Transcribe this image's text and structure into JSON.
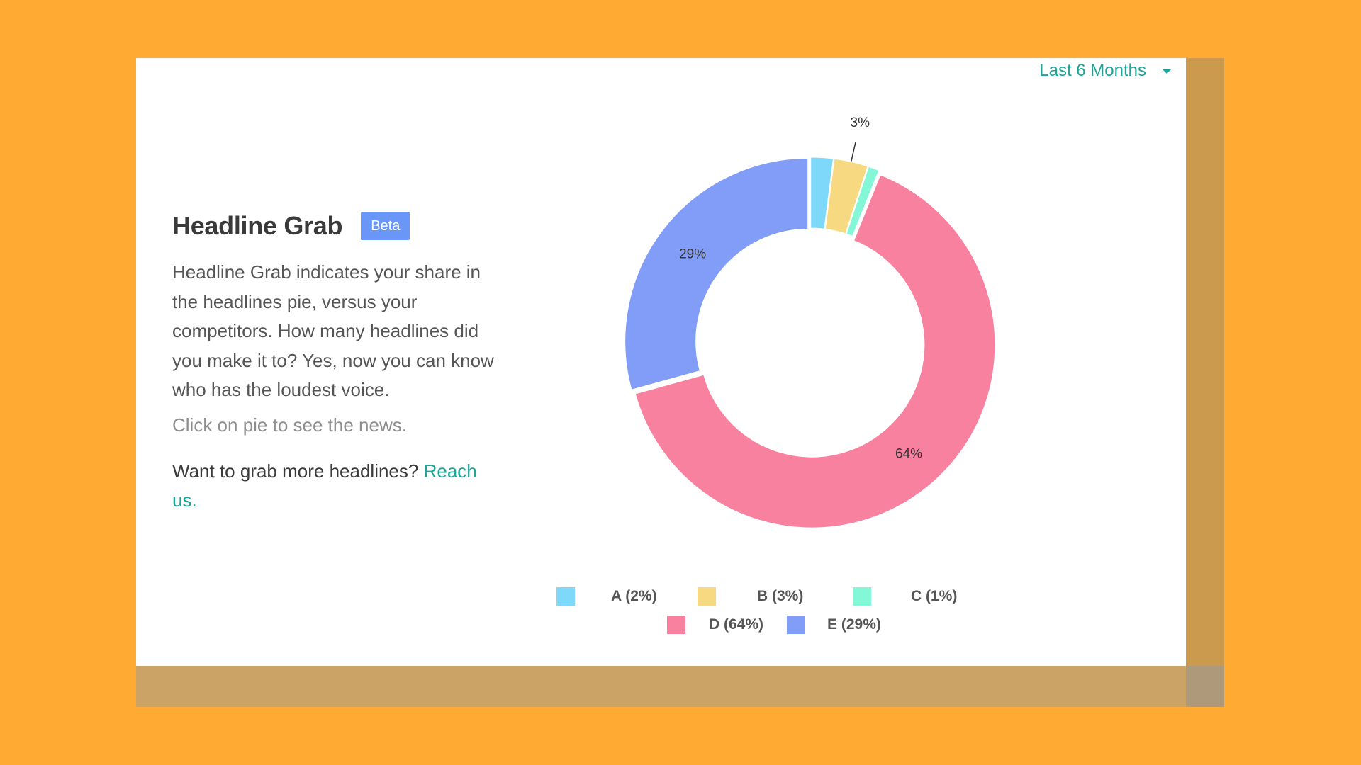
{
  "header": {
    "period_selector": {
      "label": "Last 6 Months",
      "icon": "caret-down-icon"
    }
  },
  "info": {
    "title": "Headline Grab",
    "badge": "Beta",
    "description": "Headline Grab indicates your share in the headlines pie, versus your competitors. How many headlines did you make it to? Yes, now you can know who has the loudest voice.",
    "hint": "Click on pie to see the news.",
    "cta_text": "Want to grab more headlines?",
    "cta_link": "Reach us."
  },
  "colors": {
    "background": "#FFAB33",
    "accent": "#1BA697",
    "badge": "#6A96F7"
  },
  "chart_data": {
    "type": "pie",
    "variant": "donut",
    "series": [
      {
        "name": "A",
        "value": 2,
        "legend_label": "A (2%)",
        "color": "#7DD8F9"
      },
      {
        "name": "B",
        "value": 3,
        "legend_label": "B (3%)",
        "slice_label": "3%",
        "color": "#F7D981"
      },
      {
        "name": "C",
        "value": 1,
        "legend_label": "C (1%)",
        "color": "#83F7D6"
      },
      {
        "name": "D",
        "value": 64,
        "legend_label": "D (64%)",
        "slice_label": "64%",
        "color": "#F8819F"
      },
      {
        "name": "E",
        "value": 29,
        "legend_label": "E (29%)",
        "slice_label": "29%",
        "color": "#819DF7"
      }
    ],
    "legend_placement": "bottom"
  }
}
